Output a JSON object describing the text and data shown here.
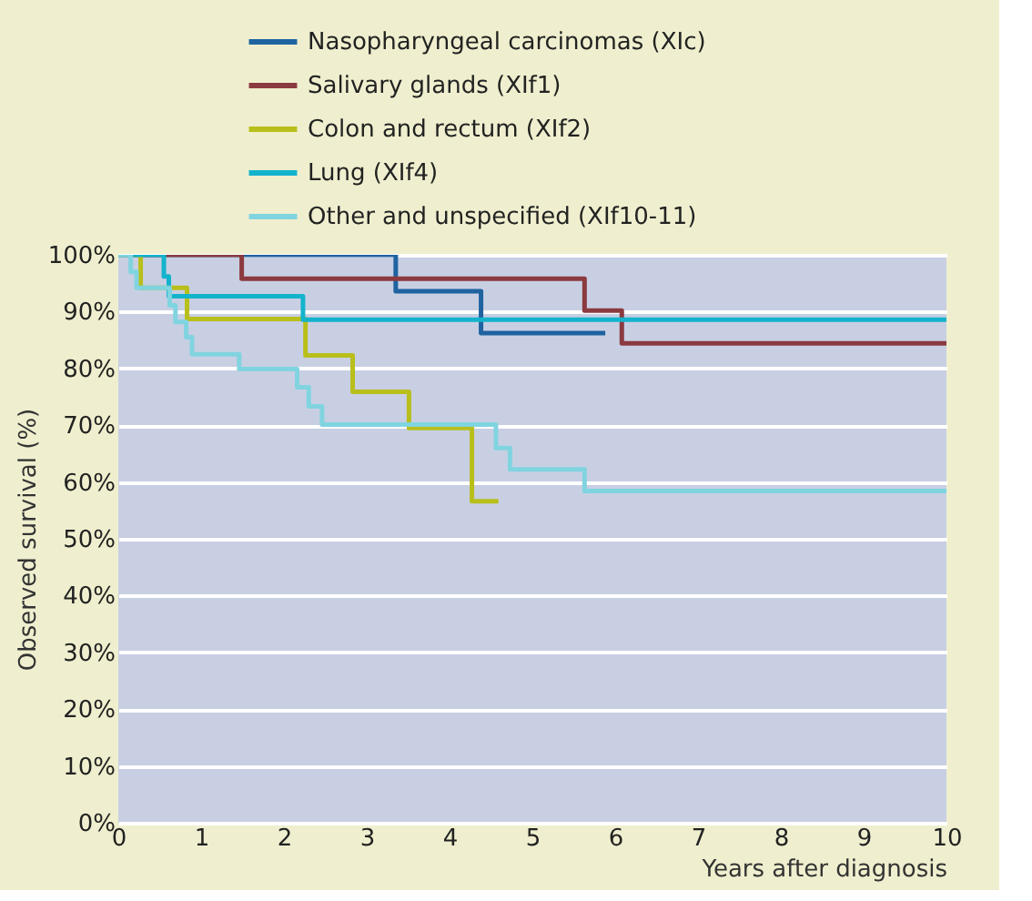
{
  "chart_data": {
    "type": "step",
    "xlabel": "Years after diagnosis",
    "ylabel": "Observed survival (%)",
    "xlim": [
      0,
      10
    ],
    "xticks": [
      0,
      1,
      2,
      3,
      4,
      5,
      6,
      7,
      8,
      9,
      10
    ],
    "ylim": [
      0,
      100
    ],
    "yticks": [
      {
        "value": 0,
        "label": "0%"
      },
      {
        "value": 10,
        "label": "10%"
      },
      {
        "value": 20,
        "label": "20%"
      },
      {
        "value": 30,
        "label": "30%"
      },
      {
        "value": 40,
        "label": "40%"
      },
      {
        "value": 50,
        "label": "50%"
      },
      {
        "value": 60,
        "label": "60%"
      },
      {
        "value": 70,
        "label": "70%"
      },
      {
        "value": 80,
        "label": "80%"
      },
      {
        "value": 90,
        "label": "90%"
      },
      {
        "value": 100,
        "label": "100%"
      }
    ],
    "grid": "y",
    "legend": "top",
    "line_style": "solid",
    "marker": "none",
    "series": [
      {
        "name": "Nasopharyngeal carcinomas (XIc)",
        "color": "#1f63a0",
        "x": [
          0,
          3.35,
          4.38,
          5.88
        ],
        "values": [
          100,
          93.6,
          86.2,
          86.2
        ]
      },
      {
        "name": "Salivary glands (XIf1)",
        "color": "#8b3a3f",
        "x": [
          0,
          1.49,
          5.63,
          6.08,
          10
        ],
        "values": [
          100,
          95.8,
          90.2,
          84.4,
          84.4
        ]
      },
      {
        "name": "Colon and rectum (XIf2)",
        "color": "#b8bf1a",
        "x": [
          0,
          0.27,
          0.83,
          2.26,
          2.83,
          3.51,
          4.27,
          4.59
        ],
        "values": [
          100,
          94.2,
          88.7,
          82.3,
          75.9,
          69.5,
          56.6,
          56.6
        ]
      },
      {
        "name": "Lung (XIf4)",
        "color": "#14b3cc",
        "x": [
          0,
          0.55,
          0.61,
          2.23,
          10
        ],
        "values": [
          100,
          96.2,
          92.7,
          88.6,
          88.6
        ]
      },
      {
        "name": "Other and unspecified (XIf10-11)",
        "color": "#80d4e0",
        "x": [
          0,
          0.15,
          0.22,
          0.62,
          0.69,
          0.82,
          0.89,
          1.46,
          2.16,
          2.3,
          2.46,
          4.56,
          4.73,
          5.63,
          10
        ],
        "values": [
          100,
          97.0,
          94.2,
          91.1,
          88.2,
          85.5,
          82.5,
          79.9,
          76.7,
          73.3,
          70.1,
          66.0,
          62.2,
          58.4,
          58.4
        ]
      }
    ]
  }
}
